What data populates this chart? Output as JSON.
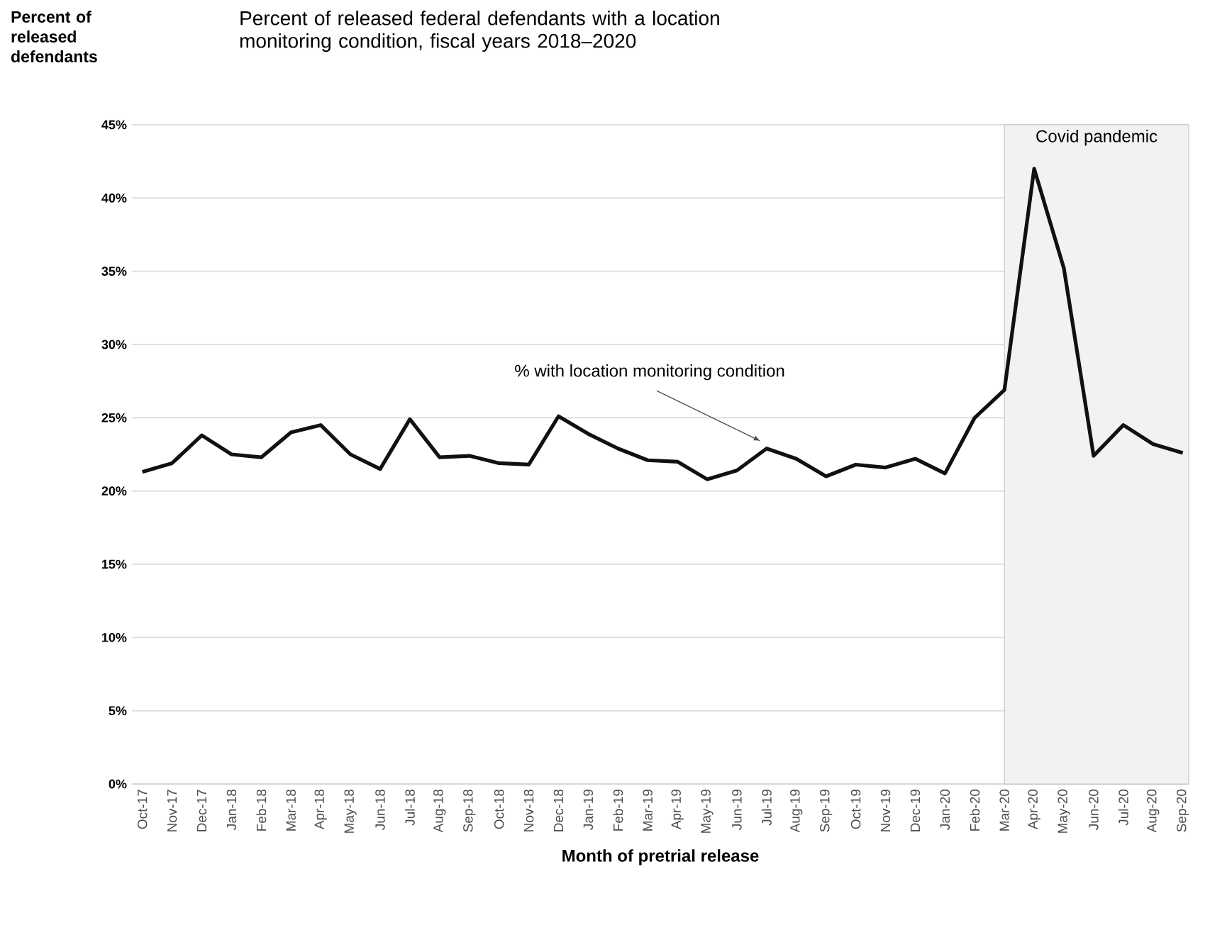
{
  "chart_data": {
    "type": "line",
    "title": "Percent of released federal defendants with a location monitoring condition, fiscal years 2018–2020",
    "ylabel": "Percent of released defendants",
    "xlabel": "Month of pretrial release",
    "categories": [
      "Oct-17",
      "Nov-17",
      "Dec-17",
      "Jan-18",
      "Feb-18",
      "Mar-18",
      "Apr-18",
      "May-18",
      "Jun-18",
      "Jul-18",
      "Aug-18",
      "Sep-18",
      "Oct-18",
      "Nov-18",
      "Dec-18",
      "Jan-19",
      "Feb-19",
      "Mar-19",
      "Apr-19",
      "May-19",
      "Jun-19",
      "Jul-19",
      "Aug-19",
      "Sep-19",
      "Oct-19",
      "Nov-19",
      "Dec-19",
      "Jan-20",
      "Feb-20",
      "Mar-20",
      "Apr-20",
      "May-20",
      "Jun-20",
      "Jul-20",
      "Aug-20",
      "Sep-20"
    ],
    "series": [
      {
        "color": "#111111",
        "values": [
          21.3,
          21.9,
          23.8,
          22.5,
          22.3,
          24.0,
          24.5,
          22.5,
          21.5,
          24.9,
          22.3,
          22.4,
          21.9,
          21.8,
          25.1,
          23.9,
          22.9,
          22.1,
          22.0,
          20.8,
          21.4,
          22.9,
          22.2,
          21.0,
          21.8,
          21.6,
          22.2,
          21.2,
          25.0,
          26.9,
          42.0,
          35.2,
          22.4,
          24.5,
          23.2,
          22.6
        ]
      }
    ],
    "ylim": [
      0,
      45
    ],
    "yticks": [
      {
        "value": 0,
        "label": "0%"
      },
      {
        "value": 5,
        "label": "5%"
      },
      {
        "value": 10,
        "label": "10%"
      },
      {
        "value": 15,
        "label": "15%"
      },
      {
        "value": 20,
        "label": "20%"
      },
      {
        "value": 25,
        "label": "25%"
      },
      {
        "value": 30,
        "label": "30%"
      },
      {
        "value": 35,
        "label": "35%"
      },
      {
        "value": 40,
        "label": "40%"
      },
      {
        "value": 45,
        "label": "45%"
      }
    ],
    "grid": "y",
    "line_style": "solid",
    "bands": [
      {
        "axis": "x",
        "from": "Mar-20",
        "to": "Sep-20",
        "label": "Covid pandemic",
        "color": "#f2f2f2"
      }
    ],
    "annotations": [
      "% with location monitoring condition"
    ]
  }
}
